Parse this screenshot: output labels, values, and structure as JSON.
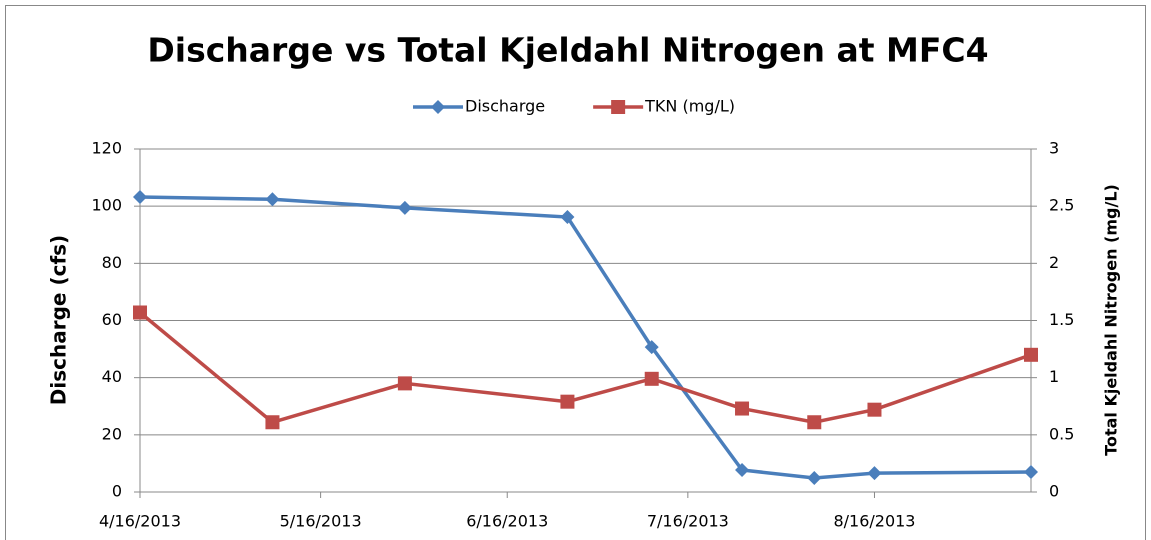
{
  "chart_data": {
    "type": "line",
    "title": "Discharge vs Total Kjeldahl Nitrogen at MFC4",
    "y_label": "Discharge (cfs)",
    "y2_label": "Total Kjeldahl Nitrogen (mg/L)",
    "x": [
      "4/16/2013",
      "5/8/2013",
      "5/30/2013",
      "6/26/2013",
      "7/10/2013",
      "7/25/2013",
      "8/6/2013",
      "8/16/2013",
      "9/11/2013"
    ],
    "series": [
      {
        "name": "Discharge",
        "color": "#4a7ebb",
        "marker": "diamond",
        "values": [
          103.2,
          102.4,
          99.4,
          96.2,
          50.7,
          7.7,
          4.9,
          6.6,
          7.0
        ]
      },
      {
        "name": "TKN (mg/L)",
        "color": "#be4b48",
        "marker": "square",
        "axis": "y2",
        "values": [
          1.57,
          0.61,
          0.95,
          0.79,
          0.99,
          0.73,
          0.61,
          0.72,
          1.2
        ]
      }
    ],
    "xlim": [
      "4/16/2013",
      "9/11/2013"
    ],
    "xticks": [
      "4/16/2013",
      "5/16/2013",
      "6/16/2013",
      "7/16/2013",
      "8/16/2013"
    ],
    "ylim": [
      0,
      120
    ],
    "yticks": [
      0,
      20,
      40,
      60,
      80,
      100,
      120
    ],
    "y2lim": [
      0,
      3
    ],
    "y2ticks": [
      0,
      0.5,
      1,
      1.5,
      2,
      2.5,
      3
    ],
    "grid": true,
    "legend": "top"
  }
}
